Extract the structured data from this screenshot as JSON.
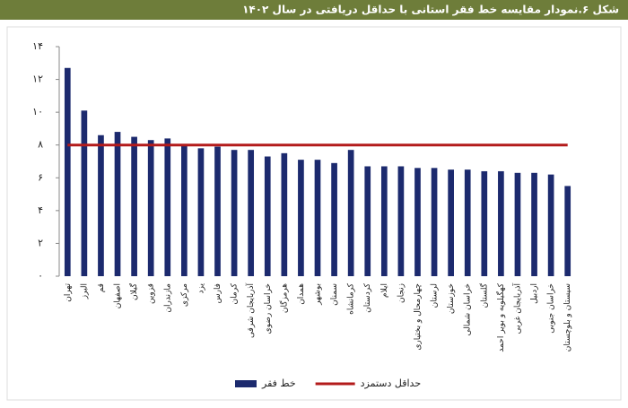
{
  "chart_data": {
    "type": "bar",
    "title": "شکل ۶.نمودار مقایسه خط فقر استانی با حداقل دریافتی در سال ۱۴۰۲",
    "categories": [
      "تهران",
      "البرز",
      "قم",
      "اصفهان",
      "گیلان",
      "قزوین",
      "مازندران",
      "مرکزی",
      "یزد",
      "فارس",
      "کرمان",
      "آذربایجان شرقی",
      "خراسان رضوی",
      "هرمزگان",
      "همدان",
      "بوشهر",
      "سمنان",
      "کرمانشاه",
      "کردستان",
      "ایلام",
      "زنجان",
      "چهارمحال و بختیاری",
      "لرستان",
      "خوزستان",
      "خراسان شمالی",
      "گلستان",
      "کهگیلویه و بویر احمد",
      "آذربایجان غربی",
      "اردبیل",
      "خراسان جنوبی",
      "سیستان و بلوچستان"
    ],
    "series": [
      {
        "name": "خط فقر",
        "color": "#1c2a6e",
        "values": [
          12.7,
          10.1,
          8.6,
          8.8,
          8.5,
          8.3,
          8.4,
          8.0,
          7.8,
          7.9,
          7.7,
          7.7,
          7.3,
          7.5,
          7.1,
          7.1,
          6.9,
          7.7,
          6.7,
          6.7,
          6.7,
          6.6,
          6.6,
          6.5,
          6.5,
          6.4,
          6.4,
          6.3,
          6.3,
          6.2,
          5.5
        ]
      },
      {
        "name": "حداقل دستمزد",
        "color": "#b31b1b",
        "type": "line",
        "values": [
          8,
          8,
          8,
          8,
          8,
          8,
          8,
          8,
          8,
          8,
          8,
          8,
          8,
          8,
          8,
          8,
          8,
          8,
          8,
          8,
          8,
          8,
          8,
          8,
          8,
          8,
          8,
          8,
          8,
          8,
          8
        ]
      }
    ],
    "ylim": [
      0,
      14
    ],
    "yticks": [
      {
        "value": 0,
        "label": "۰"
      },
      {
        "value": 2,
        "label": "۲"
      },
      {
        "value": 4,
        "label": "۴"
      },
      {
        "value": 6,
        "label": "۶"
      },
      {
        "value": 8,
        "label": "۸"
      },
      {
        "value": 10,
        "label": "۱۰"
      },
      {
        "value": 12,
        "label": "۱۲"
      },
      {
        "value": 14,
        "label": "۱۴"
      }
    ],
    "grid": false,
    "legend": "bottom"
  }
}
